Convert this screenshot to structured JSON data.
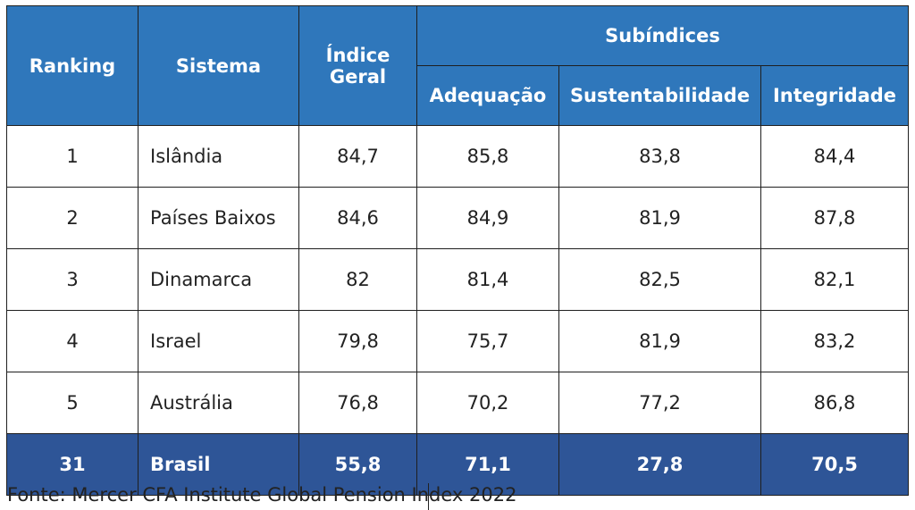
{
  "headers": {
    "ranking": "Ranking",
    "sistema": "Sistema",
    "indice_geral_line1": "Índice",
    "indice_geral_line2": "Geral",
    "subindices": "Subíndices",
    "adequacao": "Adequação",
    "sustentabilidade": "Sustentabilidade",
    "integridade": "Integridade"
  },
  "rows": [
    {
      "ranking": "1",
      "sistema": "Islândia",
      "indice_geral": "84,7",
      "adequacao": "85,8",
      "sustentabilidade": "83,8",
      "integridade": "84,4"
    },
    {
      "ranking": "2",
      "sistema": "Países Baixos",
      "indice_geral": "84,6",
      "adequacao": "84,9",
      "sustentabilidade": "81,9",
      "integridade": "87,8"
    },
    {
      "ranking": "3",
      "sistema": "Dinamarca",
      "indice_geral": "82",
      "adequacao": "81,4",
      "sustentabilidade": "82,5",
      "integridade": "82,1"
    },
    {
      "ranking": "4",
      "sistema": "Israel",
      "indice_geral": "79,8",
      "adequacao": "75,7",
      "sustentabilidade": "81,9",
      "integridade": "83,2"
    },
    {
      "ranking": "5",
      "sistema": "Austrália",
      "indice_geral": "76,8",
      "adequacao": "70,2",
      "sustentabilidade": "77,2",
      "integridade": "86,8"
    },
    {
      "ranking": "31",
      "sistema": "Brasil",
      "indice_geral": "55,8",
      "adequacao": "71,1",
      "sustentabilidade": "27,8",
      "integridade": "70,5"
    }
  ],
  "highlight_row": "31",
  "colors": {
    "header": "#2f77bb",
    "highlight": "#2e5597"
  },
  "source": "Fonte: Mercer CFA Institute Global Pension Index 2022"
}
